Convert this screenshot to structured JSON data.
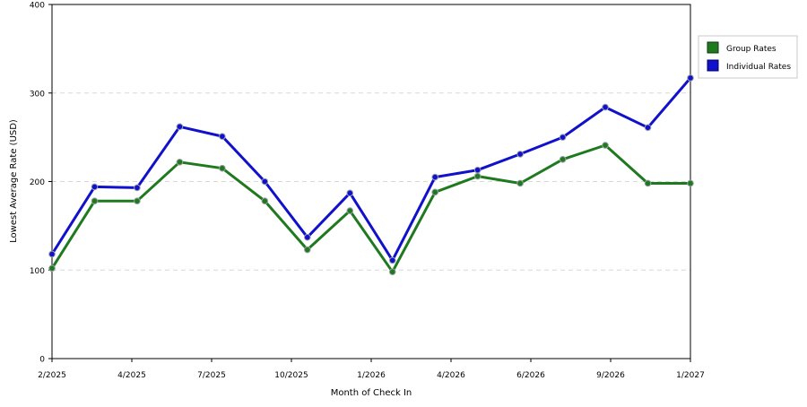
{
  "chart_data": {
    "type": "line",
    "title": "",
    "xlabel": "Month of Check In",
    "ylabel": "Lowest Average Rate (USD)",
    "ylim": [
      0,
      400
    ],
    "y_ticks": [
      0,
      100,
      200,
      300,
      400
    ],
    "grid": "horizontal dashed",
    "legend_position": "top-right (outside plot)",
    "x_tick_labels": [
      "2/2025",
      "4/2025",
      "7/2025",
      "10/2025",
      "1/2026",
      "4/2026",
      "6/2026",
      "9/2026",
      "1/2027"
    ],
    "series": [
      {
        "name": "Group Rates",
        "color": "#1f7a1f",
        "values": [
          102,
          178,
          178,
          222,
          215,
          178,
          123,
          167,
          98,
          188,
          206,
          198,
          225,
          241,
          198,
          198
        ]
      },
      {
        "name": "Individual Rates",
        "color": "#1111cc",
        "values": [
          118,
          194,
          193,
          262,
          251,
          200,
          137,
          187,
          111,
          205,
          213,
          231,
          250,
          284,
          261,
          317
        ]
      }
    ]
  }
}
